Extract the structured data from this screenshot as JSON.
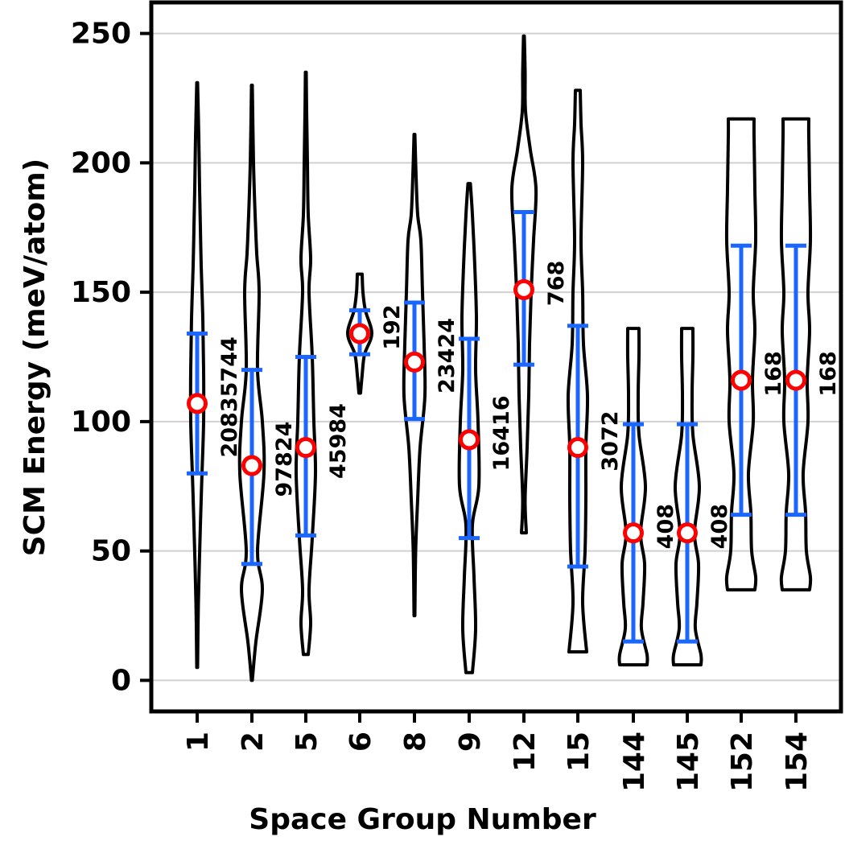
{
  "chart_data": {
    "type": "violin",
    "xlabel": "Space Group Number",
    "ylabel": "SCM Energy (meV/atom)",
    "ylim": [
      -12,
      262
    ],
    "yticks": [
      0,
      50,
      100,
      150,
      200,
      250
    ],
    "grid": "horizontal",
    "colors": {
      "violin": "#000000",
      "whisker": "#1a66ff",
      "median": "#ff0000"
    },
    "groups": [
      {
        "label": "1",
        "count": "20835744",
        "mean": 107,
        "q1": 80,
        "q3": 134,
        "min": 5,
        "max": 231,
        "profile": [
          [
            5,
            0.5
          ],
          [
            30,
            1.5
          ],
          [
            60,
            4
          ],
          [
            80,
            6
          ],
          [
            100,
            8
          ],
          [
            120,
            8
          ],
          [
            140,
            7
          ],
          [
            160,
            5
          ],
          [
            175,
            4
          ],
          [
            190,
            3
          ],
          [
            210,
            2
          ],
          [
            231,
            0.5
          ]
        ]
      },
      {
        "label": "2",
        "count": "97824",
        "mean": 83,
        "q1": 45,
        "q3": 120,
        "min": 0,
        "max": 230,
        "profile": [
          [
            0,
            0.5
          ],
          [
            15,
            5
          ],
          [
            35,
            13
          ],
          [
            50,
            7
          ],
          [
            80,
            15
          ],
          [
            100,
            13
          ],
          [
            120,
            7
          ],
          [
            150,
            9
          ],
          [
            165,
            6
          ],
          [
            180,
            4
          ],
          [
            200,
            2
          ],
          [
            230,
            0.5
          ]
        ]
      },
      {
        "label": "5",
        "count": "45984",
        "mean": 90,
        "q1": 56,
        "q3": 125,
        "min": 10,
        "max": 235,
        "profile": [
          [
            10,
            3
          ],
          [
            22,
            6
          ],
          [
            35,
            4
          ],
          [
            55,
            8
          ],
          [
            80,
            12
          ],
          [
            100,
            10
          ],
          [
            125,
            8
          ],
          [
            150,
            4
          ],
          [
            163,
            6
          ],
          [
            180,
            3
          ],
          [
            200,
            2
          ],
          [
            220,
            1
          ],
          [
            235,
            0.5
          ]
        ]
      },
      {
        "label": "6",
        "count": "192",
        "mean": 134,
        "q1": 126,
        "q3": 143,
        "min": 111,
        "max": 157,
        "profile": [
          [
            111,
            1
          ],
          [
            118,
            3
          ],
          [
            126,
            6
          ],
          [
            134,
            15
          ],
          [
            143,
            7
          ],
          [
            150,
            4
          ],
          [
            157,
            3
          ]
        ]
      },
      {
        "label": "8",
        "count": "23424",
        "mean": 123,
        "q1": 101,
        "q3": 146,
        "min": 25,
        "max": 211,
        "profile": [
          [
            25,
            0.5
          ],
          [
            50,
            1.5
          ],
          [
            70,
            4
          ],
          [
            90,
            7
          ],
          [
            110,
            13
          ],
          [
            130,
            12
          ],
          [
            150,
            10
          ],
          [
            170,
            8
          ],
          [
            180,
            4
          ],
          [
            195,
            2
          ],
          [
            211,
            0.5
          ]
        ]
      },
      {
        "label": "9",
        "count": "16416",
        "mean": 93,
        "q1": 55,
        "q3": 132,
        "min": 3,
        "max": 192,
        "profile": [
          [
            3,
            4
          ],
          [
            20,
            8
          ],
          [
            40,
            6
          ],
          [
            60,
            4
          ],
          [
            75,
            12
          ],
          [
            100,
            11
          ],
          [
            120,
            8
          ],
          [
            140,
            9
          ],
          [
            160,
            7
          ],
          [
            180,
            4
          ],
          [
            192,
            1.5
          ]
        ]
      },
      {
        "label": "12",
        "count": "768",
        "mean": 151,
        "q1": 122,
        "q3": 181,
        "min": 57,
        "max": 249,
        "profile": [
          [
            57,
            3
          ],
          [
            70,
            1.5
          ],
          [
            90,
            4
          ],
          [
            110,
            6
          ],
          [
            130,
            7
          ],
          [
            150,
            9
          ],
          [
            170,
            12
          ],
          [
            190,
            15
          ],
          [
            205,
            8
          ],
          [
            220,
            2
          ],
          [
            235,
            1.5
          ],
          [
            249,
            0.5
          ]
        ]
      },
      {
        "label": "15",
        "count": "3072",
        "mean": 90,
        "q1": 44,
        "q3": 137,
        "min": 11,
        "max": 228,
        "profile": [
          [
            11,
            11
          ],
          [
            30,
            6
          ],
          [
            50,
            9
          ],
          [
            70,
            10
          ],
          [
            90,
            10
          ],
          [
            110,
            12
          ],
          [
            130,
            7
          ],
          [
            150,
            6
          ],
          [
            170,
            4
          ],
          [
            200,
            6
          ],
          [
            215,
            4
          ],
          [
            228,
            3
          ]
        ]
      },
      {
        "label": "144",
        "count": "408",
        "mean": 57,
        "q1": 15,
        "q3": 99,
        "min": 6,
        "max": 136,
        "profile": [
          [
            6,
            17
          ],
          [
            10,
            17
          ],
          [
            20,
            10
          ],
          [
            30,
            12
          ],
          [
            45,
            14
          ],
          [
            57,
            9
          ],
          [
            75,
            15
          ],
          [
            95,
            7
          ],
          [
            110,
            6
          ],
          [
            125,
            7
          ],
          [
            136,
            7
          ]
        ]
      },
      {
        "label": "145",
        "count": "408",
        "mean": 57,
        "q1": 15,
        "q3": 99,
        "min": 6,
        "max": 136,
        "profile": [
          [
            6,
            17
          ],
          [
            10,
            17
          ],
          [
            20,
            10
          ],
          [
            30,
            12
          ],
          [
            45,
            14
          ],
          [
            57,
            9
          ],
          [
            75,
            15
          ],
          [
            95,
            7
          ],
          [
            110,
            6
          ],
          [
            125,
            7
          ],
          [
            136,
            7
          ]
        ]
      },
      {
        "label": "152",
        "count": "168",
        "mean": 116,
        "q1": 64,
        "q3": 168,
        "min": 35,
        "max": 217,
        "profile": [
          [
            35,
            17
          ],
          [
            40,
            18
          ],
          [
            50,
            13
          ],
          [
            65,
            12
          ],
          [
            80,
            9
          ],
          [
            100,
            15
          ],
          [
            116,
            14
          ],
          [
            135,
            17
          ],
          [
            150,
            15
          ],
          [
            170,
            18
          ],
          [
            190,
            17
          ],
          [
            210,
            16
          ],
          [
            217,
            16
          ]
        ]
      },
      {
        "label": "154",
        "count": "168",
        "mean": 116,
        "q1": 64,
        "q3": 168,
        "min": 35,
        "max": 217,
        "profile": [
          [
            35,
            17
          ],
          [
            40,
            18
          ],
          [
            50,
            13
          ],
          [
            65,
            12
          ],
          [
            80,
            9
          ],
          [
            100,
            15
          ],
          [
            116,
            14
          ],
          [
            135,
            17
          ],
          [
            150,
            15
          ],
          [
            170,
            18
          ],
          [
            190,
            17
          ],
          [
            210,
            16
          ],
          [
            217,
            16
          ]
        ]
      }
    ]
  }
}
